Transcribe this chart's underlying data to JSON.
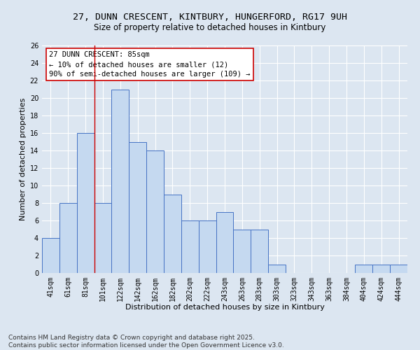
{
  "title": "27, DUNN CRESCENT, KINTBURY, HUNGERFORD, RG17 9UH",
  "subtitle": "Size of property relative to detached houses in Kintbury",
  "xlabel": "Distribution of detached houses by size in Kintbury",
  "ylabel": "Number of detached properties",
  "categories": [
    "41sqm",
    "61sqm",
    "81sqm",
    "101sqm",
    "122sqm",
    "142sqm",
    "162sqm",
    "182sqm",
    "202sqm",
    "222sqm",
    "243sqm",
    "263sqm",
    "283sqm",
    "303sqm",
    "323sqm",
    "343sqm",
    "363sqm",
    "384sqm",
    "404sqm",
    "424sqm",
    "444sqm"
  ],
  "values": [
    4,
    8,
    16,
    8,
    21,
    15,
    14,
    9,
    6,
    6,
    7,
    5,
    5,
    1,
    0,
    0,
    0,
    0,
    1,
    1,
    1
  ],
  "bar_color": "#c5d9f0",
  "bar_edge_color": "#4472c4",
  "background_color": "#dce6f1",
  "grid_color": "#ffffff",
  "red_line_x": 2.5,
  "annotation_text": "27 DUNN CRESCENT: 85sqm\n← 10% of detached houses are smaller (12)\n90% of semi-detached houses are larger (109) →",
  "annotation_box_color": "#ffffff",
  "annotation_box_edge": "#cc0000",
  "annotation_text_color": "#000000",
  "ylim": [
    0,
    26
  ],
  "yticks": [
    0,
    2,
    4,
    6,
    8,
    10,
    12,
    14,
    16,
    18,
    20,
    22,
    24,
    26
  ],
  "footer": "Contains HM Land Registry data © Crown copyright and database right 2025.\nContains public sector information licensed under the Open Government Licence v3.0.",
  "title_fontsize": 9.5,
  "subtitle_fontsize": 8.5,
  "xlabel_fontsize": 8,
  "ylabel_fontsize": 8,
  "tick_fontsize": 7,
  "annotation_fontsize": 7.5,
  "footer_fontsize": 6.5
}
